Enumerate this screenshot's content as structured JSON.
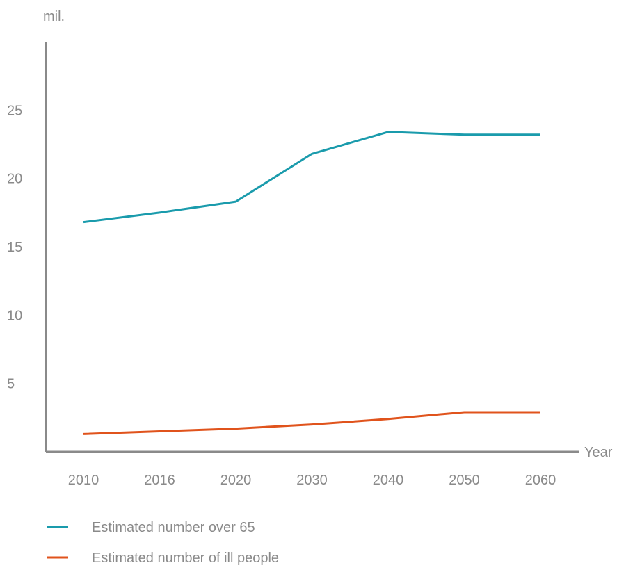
{
  "chart_data": {
    "type": "line",
    "ylabel": "mil.",
    "xlabel": "Year",
    "categories": [
      "2010",
      "2016",
      "2020",
      "2030",
      "2040",
      "2050",
      "2060"
    ],
    "yticks": [
      5,
      10,
      15,
      20,
      25
    ],
    "ylim": [
      0,
      30
    ],
    "grid": false,
    "legend_position": "bottom",
    "series": [
      {
        "name": "Estimated number over 65",
        "color": "#1a9bac",
        "values": [
          16.8,
          17.5,
          18.3,
          21.8,
          23.4,
          23.2,
          23.2
        ]
      },
      {
        "name": "Estimated number of ill people",
        "color": "#e0531c",
        "values": [
          1.3,
          1.5,
          1.7,
          2.0,
          2.4,
          2.9,
          2.9
        ]
      }
    ]
  }
}
